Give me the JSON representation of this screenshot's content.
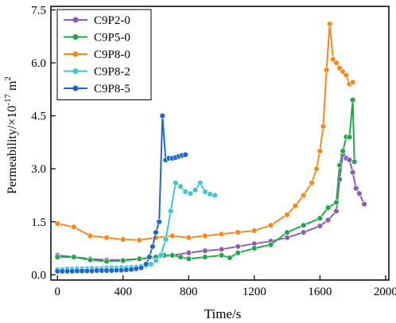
{
  "chart_data": {
    "type": "line",
    "title": "",
    "xlabel": "Time/s",
    "ylabel_parts": {
      "pre": "Permeability/×10",
      "exp": "-17",
      "unit": " m",
      "unit_exp": "2"
    },
    "xlim": [
      -40,
      2020
    ],
    "ylim": [
      -0.15,
      7.6
    ],
    "x_ticks": [
      0,
      400,
      800,
      1200,
      1600,
      2000
    ],
    "x_tick_labels": [
      "0",
      "400",
      "800",
      "1200",
      "1600",
      "2000"
    ],
    "y_ticks": [
      0.0,
      1.5,
      3.0,
      4.5,
      6.0,
      7.5
    ],
    "y_tick_labels": [
      "0.0",
      "1.5",
      "3.0",
      "4.5",
      "6.0",
      "7.5"
    ],
    "grid": false,
    "legend_position": "top-left",
    "series": [
      {
        "name": "C9P2-0",
        "color": "#8b5db3",
        "x": [
          0,
          100,
          200,
          300,
          400,
          500,
          600,
          700,
          800,
          900,
          1000,
          1100,
          1200,
          1300,
          1400,
          1500,
          1600,
          1650,
          1700,
          1720,
          1740,
          1760,
          1780,
          1800,
          1820,
          1840,
          1870
        ],
        "y": [
          0.55,
          0.5,
          0.45,
          0.42,
          0.42,
          0.45,
          0.48,
          0.55,
          0.62,
          0.68,
          0.72,
          0.8,
          0.88,
          0.95,
          1.05,
          1.2,
          1.38,
          1.55,
          1.8,
          2.7,
          3.4,
          3.3,
          3.25,
          2.9,
          2.45,
          2.3,
          2.0
        ]
      },
      {
        "name": "C9P5-0",
        "color": "#22a84a",
        "x": [
          0,
          100,
          200,
          300,
          400,
          500,
          600,
          650,
          700,
          750,
          800,
          900,
          1000,
          1050,
          1100,
          1200,
          1300,
          1400,
          1500,
          1600,
          1650,
          1700,
          1720,
          1740,
          1760,
          1780,
          1800,
          1810
        ],
        "y": [
          0.5,
          0.5,
          0.42,
          0.38,
          0.4,
          0.45,
          0.5,
          0.55,
          0.55,
          0.5,
          0.45,
          0.5,
          0.55,
          0.48,
          0.62,
          0.75,
          0.85,
          1.2,
          1.4,
          1.6,
          1.9,
          2.05,
          3.1,
          3.5,
          3.9,
          3.9,
          4.95,
          3.2
        ]
      },
      {
        "name": "C9P8-0",
        "color": "#f5881e",
        "x": [
          0,
          100,
          200,
          300,
          400,
          500,
          600,
          700,
          800,
          900,
          1000,
          1100,
          1200,
          1300,
          1400,
          1450,
          1500,
          1550,
          1580,
          1600,
          1620,
          1640,
          1660,
          1680,
          1700,
          1720,
          1740,
          1760,
          1780,
          1800
        ],
        "y": [
          1.45,
          1.35,
          1.1,
          1.05,
          1.0,
          0.98,
          1.05,
          1.1,
          1.05,
          1.1,
          1.15,
          1.2,
          1.25,
          1.4,
          1.7,
          1.95,
          2.25,
          2.6,
          3.0,
          3.5,
          4.2,
          5.8,
          7.1,
          6.1,
          6.0,
          5.85,
          5.75,
          5.65,
          5.4,
          5.45
        ]
      },
      {
        "name": "C9P8-2",
        "color": "#3fc6cf",
        "x": [
          0,
          30,
          60,
          90,
          120,
          150,
          180,
          210,
          240,
          270,
          300,
          330,
          360,
          390,
          420,
          450,
          480,
          510,
          540,
          570,
          600,
          630,
          660,
          690,
          720,
          750,
          780,
          810,
          840,
          870,
          900,
          930,
          960
        ],
        "y": [
          0.15,
          0.15,
          0.16,
          0.16,
          0.17,
          0.17,
          0.17,
          0.18,
          0.18,
          0.18,
          0.19,
          0.19,
          0.19,
          0.2,
          0.2,
          0.21,
          0.22,
          0.24,
          0.26,
          0.3,
          0.4,
          0.55,
          1.0,
          1.8,
          2.6,
          2.5,
          2.35,
          2.3,
          2.4,
          2.6,
          2.35,
          2.28,
          2.25
        ]
      },
      {
        "name": "C9P8-5",
        "color": "#1f66c9",
        "x": [
          0,
          30,
          60,
          90,
          120,
          150,
          180,
          210,
          240,
          270,
          300,
          330,
          360,
          390,
          420,
          450,
          480,
          510,
          540,
          560,
          580,
          600,
          620,
          640,
          660,
          680,
          700,
          720,
          740,
          760,
          780
        ],
        "y": [
          0.1,
          0.1,
          0.1,
          0.1,
          0.11,
          0.11,
          0.11,
          0.11,
          0.12,
          0.12,
          0.12,
          0.12,
          0.13,
          0.13,
          0.14,
          0.15,
          0.17,
          0.2,
          0.3,
          0.5,
          0.8,
          1.2,
          1.5,
          4.5,
          3.25,
          3.3,
          3.3,
          3.32,
          3.35,
          3.38,
          3.4
        ]
      }
    ]
  }
}
